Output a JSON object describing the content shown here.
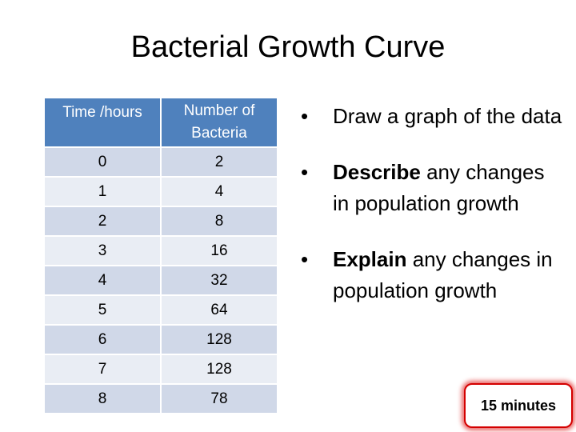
{
  "title": "Bacterial Growth Curve",
  "table": {
    "headers": [
      "Time /hours",
      "Number of Bacteria"
    ],
    "rows": [
      [
        "0",
        "2"
      ],
      [
        "1",
        "4"
      ],
      [
        "2",
        "8"
      ],
      [
        "3",
        "16"
      ],
      [
        "4",
        "32"
      ],
      [
        "5",
        "64"
      ],
      [
        "6",
        "128"
      ],
      [
        "7",
        "128"
      ],
      [
        "8",
        "78"
      ]
    ]
  },
  "bullets": [
    {
      "bold": "",
      "text": " Draw a graph of the data"
    },
    {
      "bold": "Describe",
      "text": " any changes in population growth"
    },
    {
      "bold": "Explain",
      "text": " any changes in population growth"
    }
  ],
  "timer_label": "15 minutes",
  "colors": {
    "header_bg": "#4f81bd",
    "row_odd": "#d0d8e8",
    "row_even": "#e9edf4",
    "timer_border": "#d40000"
  }
}
